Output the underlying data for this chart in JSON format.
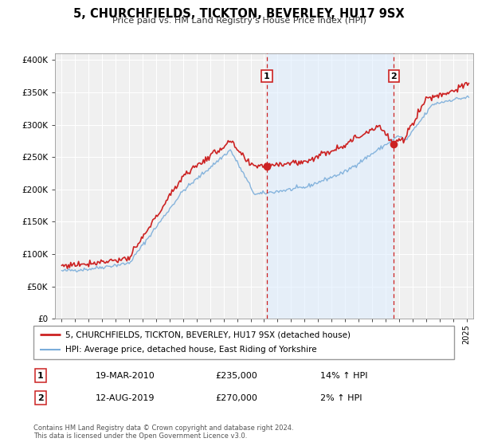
{
  "title": "5, CHURCHFIELDS, TICKTON, BEVERLEY, HU17 9SX",
  "subtitle": "Price paid vs. HM Land Registry's House Price Index (HPI)",
  "legend_line1": "5, CHURCHFIELDS, TICKTON, BEVERLEY, HU17 9SX (detached house)",
  "legend_line2": "HPI: Average price, detached house, East Riding of Yorkshire",
  "sale1_label": "1",
  "sale1_date": "19-MAR-2010",
  "sale1_price": "£235,000",
  "sale1_hpi": "14% ↑ HPI",
  "sale1_year": 2010.21,
  "sale1_value": 235000,
  "sale2_label": "2",
  "sale2_date": "12-AUG-2019",
  "sale2_price": "£270,000",
  "sale2_hpi": "2% ↑ HPI",
  "sale2_year": 2019.62,
  "sale2_value": 270000,
  "footnote1": "Contains HM Land Registry data © Crown copyright and database right 2024.",
  "footnote2": "This data is licensed under the Open Government Licence v3.0.",
  "price_line_color": "#cc2222",
  "hpi_line_color": "#7aadda",
  "sale_dot_color": "#cc2222",
  "vline_color": "#cc2222",
  "shade_color": "#ddeeff",
  "chart_bg_color": "#f0f0f0",
  "grid_color": "#ffffff",
  "ylim_max": 400000,
  "xlim_start": 1994.5,
  "xlim_end": 2025.5
}
